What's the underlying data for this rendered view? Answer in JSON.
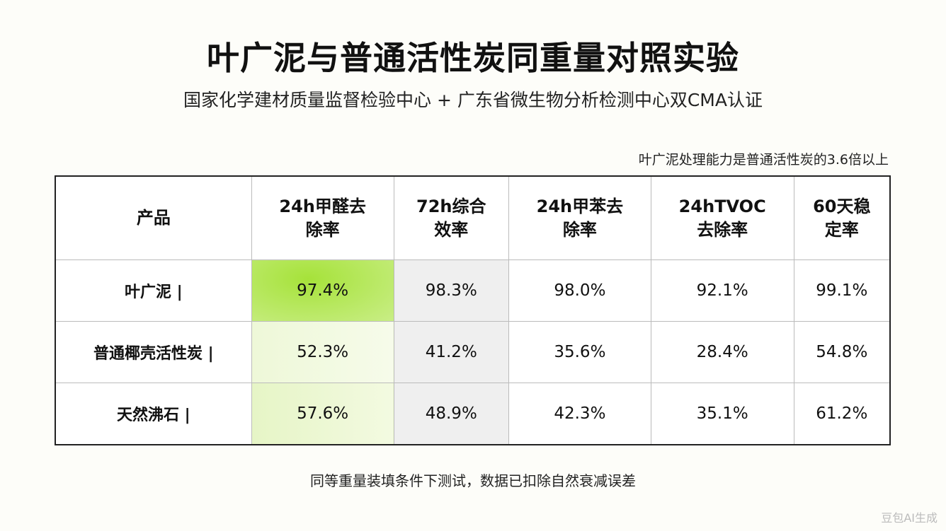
{
  "header": {
    "title": "叶广泥与普通活性炭同重量对照实验",
    "subtitle": "国家化学建材质量监督检验中心 + 广东省微生物分析检测中心双CMA认证",
    "note": "叶广泥处理能力是普通活性炭的3.6倍以上"
  },
  "table": {
    "headers": [
      [
        "产品"
      ],
      [
        "24h甲醛去",
        "除率"
      ],
      [
        "72h综合",
        "效率"
      ],
      [
        "24h甲苯去",
        "除率"
      ],
      [
        "24hTVOC",
        "去除率"
      ],
      [
        "60天稳",
        "定率"
      ]
    ],
    "rows": [
      [
        "叶广泥 |",
        "97.4%",
        "98.3%",
        "98.0%",
        "92.1%",
        "99.1%"
      ],
      [
        "普通椰壳活性炭 |",
        "52.3%",
        "41.2%",
        "35.6%",
        "28.4%",
        "54.8%"
      ],
      [
        "天然沸石 |",
        "57.6%",
        "48.9%",
        "42.3%",
        "35.1%",
        "61.2%"
      ]
    ]
  },
  "footer": {
    "text": "同等重量装填条件下测试，数据已扣除自然衰减误差",
    "watermark": "豆包AI生成"
  }
}
